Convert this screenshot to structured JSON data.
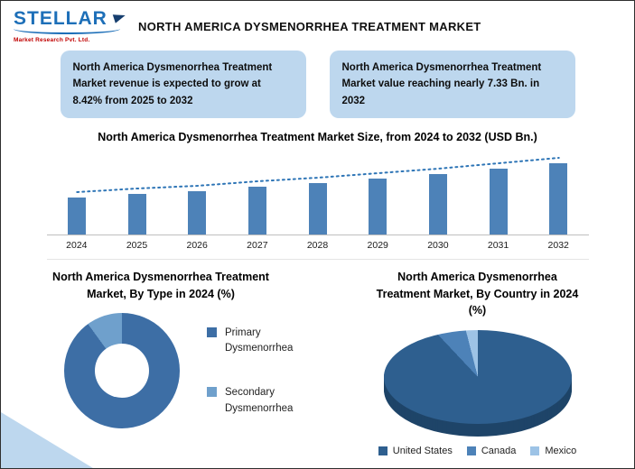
{
  "header": {
    "logo": {
      "brand": "STELLAR",
      "tagline": "Market Research Pvt. Ltd."
    },
    "title": "NORTH AMERICA DYSMENORRHEA TREATMENT MARKET"
  },
  "callouts": [
    {
      "text": "North America Dysmenorrhea Treatment Market revenue is expected to grow at 8.42% from 2025 to 2032"
    },
    {
      "text": "North America Dysmenorrhea Treatment Market value reaching nearly 7.33 Bn. in 2032"
    }
  ],
  "chart_data": [
    {
      "type": "bar",
      "title": "North America Dysmenorrhea Treatment Market Size, from 2024 to 2032 (USD Bn.)",
      "categories": [
        "2024",
        "2025",
        "2026",
        "2027",
        "2028",
        "2029",
        "2030",
        "2031",
        "2032"
      ],
      "values": [
        3.84,
        4.16,
        4.51,
        4.89,
        5.3,
        5.75,
        6.23,
        6.76,
        7.33
      ],
      "ylabel": "USD Bn.",
      "ylim": [
        0,
        8
      ],
      "grid": false,
      "bar_color": "#4D82B8",
      "trendline": true,
      "trend_color": "#2E75B6"
    },
    {
      "type": "pie",
      "subtype": "donut",
      "title": "North America Dysmenorrhea Treatment Market, By Type  in 2024 (%)",
      "labels": [
        "Primary Dysmenorrhea",
        "Secondary Dysmenorrhea"
      ],
      "values": [
        90,
        10
      ],
      "colors": [
        "#3D6EA5",
        "#6FA0CC"
      ],
      "legend_position": "right"
    },
    {
      "type": "pie",
      "subtype": "pie3d",
      "title": "North America Dysmenorrhea Treatment Market, By Country in 2024 (%)",
      "labels": [
        "United States",
        "Canada",
        "Mexico"
      ],
      "values": [
        88,
        8,
        4
      ],
      "colors": [
        "#2E5F8F",
        "#4D82B8",
        "#9DC3E6"
      ],
      "side_color": "#1E4468",
      "legend_position": "bottom"
    }
  ]
}
